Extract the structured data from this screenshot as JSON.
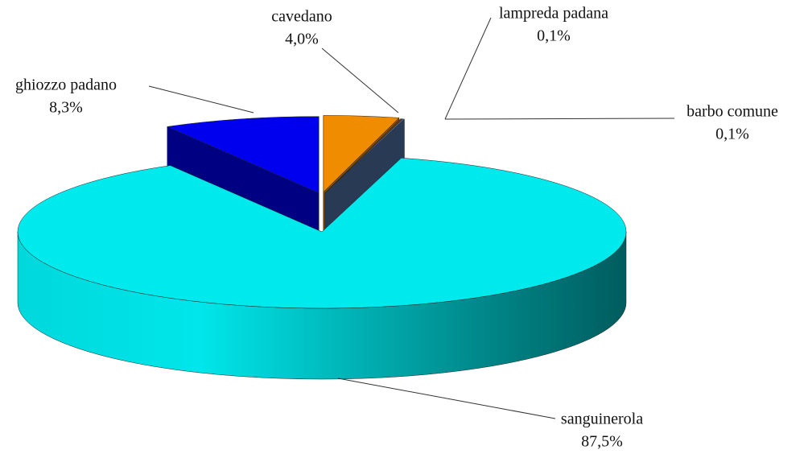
{
  "chart_data": {
    "type": "pie3d",
    "categories": [
      "cavedano",
      "lampreda padana",
      "barbo comune",
      "sanguinerola",
      "ghiozzo padano"
    ],
    "values": [
      4.0,
      0.1,
      0.1,
      87.5,
      8.3
    ],
    "value_labels": [
      "4,0%",
      "0,1%",
      "0,1%",
      "87,5%",
      "8,3%"
    ],
    "colors": [
      "#f08c00",
      "#7a3a00",
      "#4a6a9a",
      "#00eaee",
      "#0000ee"
    ]
  }
}
